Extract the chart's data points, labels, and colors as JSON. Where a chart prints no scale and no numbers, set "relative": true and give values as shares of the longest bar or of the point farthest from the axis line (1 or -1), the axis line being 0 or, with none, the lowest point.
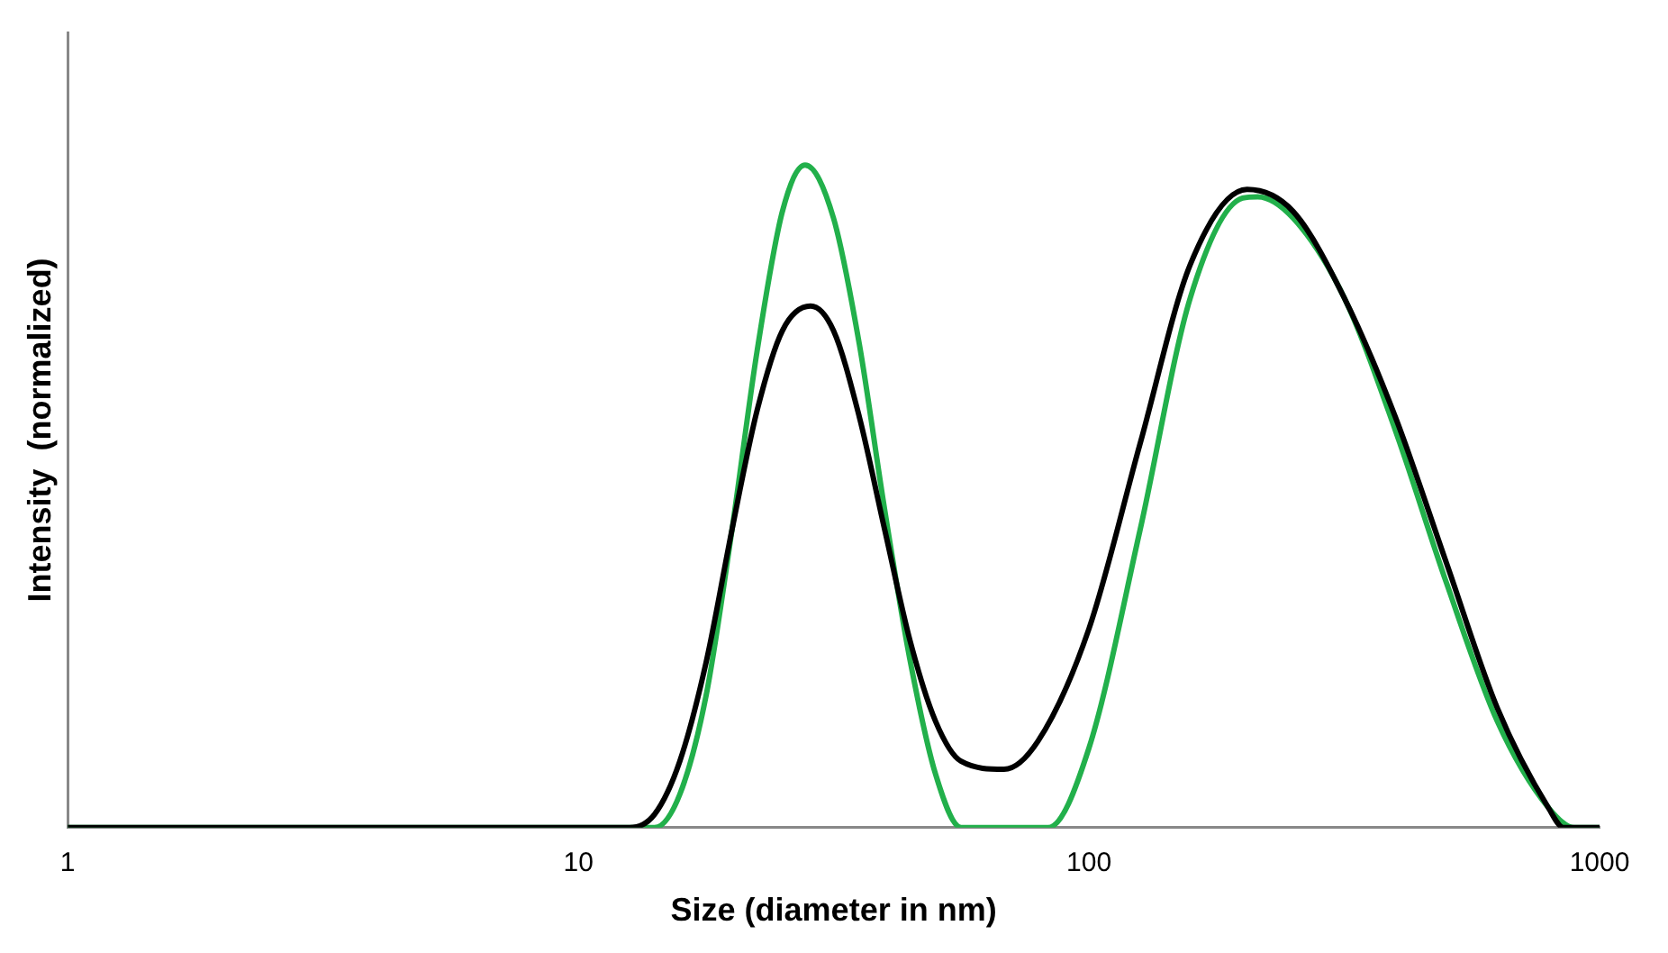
{
  "chart_data": {
    "type": "line",
    "xlabel": "Size (diameter in nm)",
    "ylabel": "Intensity  (normalized)",
    "relative": true,
    "log": "x",
    "xlim": [
      1,
      1000
    ],
    "xticks": [
      1,
      10,
      100,
      1000
    ],
    "grid": false,
    "legend": false,
    "marker": "none",
    "line_style": "solid",
    "series": [
      {
        "color": "#000000",
        "x": [
          1,
          12.6,
          14.1,
          15.8,
          17.8,
          20,
          22.4,
          25.1,
          28.5,
          31.6,
          35.5,
          39.8,
          44.7,
          50.1,
          56.2,
          68.2,
          79.4,
          100,
          126,
          158,
          204,
          251,
          316,
          398,
          501,
          631,
          794,
          851,
          1000
        ],
        "values": [
          0,
          0,
          0.02,
          0.1,
          0.25,
          0.45,
          0.63,
          0.75,
          0.787,
          0.75,
          0.62,
          0.45,
          0.28,
          0.16,
          0.1,
          0.088,
          0.13,
          0.3,
          0.58,
          0.85,
          0.963,
          0.93,
          0.8,
          0.62,
          0.4,
          0.18,
          0.03,
          0,
          0
        ]
      },
      {
        "color": "#22b04b",
        "x": [
          1,
          14.1,
          15.8,
          17.8,
          20,
          22.4,
          25.1,
          27.8,
          31.6,
          35.5,
          39.8,
          44.7,
          50.1,
          56.2,
          83.2,
          100,
          126,
          158,
          200,
          214,
          251,
          316,
          398,
          501,
          631,
          794,
          891,
          1000
        ],
        "values": [
          0,
          0,
          0.05,
          0.2,
          0.45,
          0.72,
          0.93,
          1,
          0.92,
          0.73,
          0.48,
          0.25,
          0.08,
          0,
          0,
          0.12,
          0.45,
          0.8,
          0.95,
          0.952,
          0.92,
          0.8,
          0.6,
          0.37,
          0.16,
          0.03,
          0,
          0
        ]
      }
    ]
  }
}
